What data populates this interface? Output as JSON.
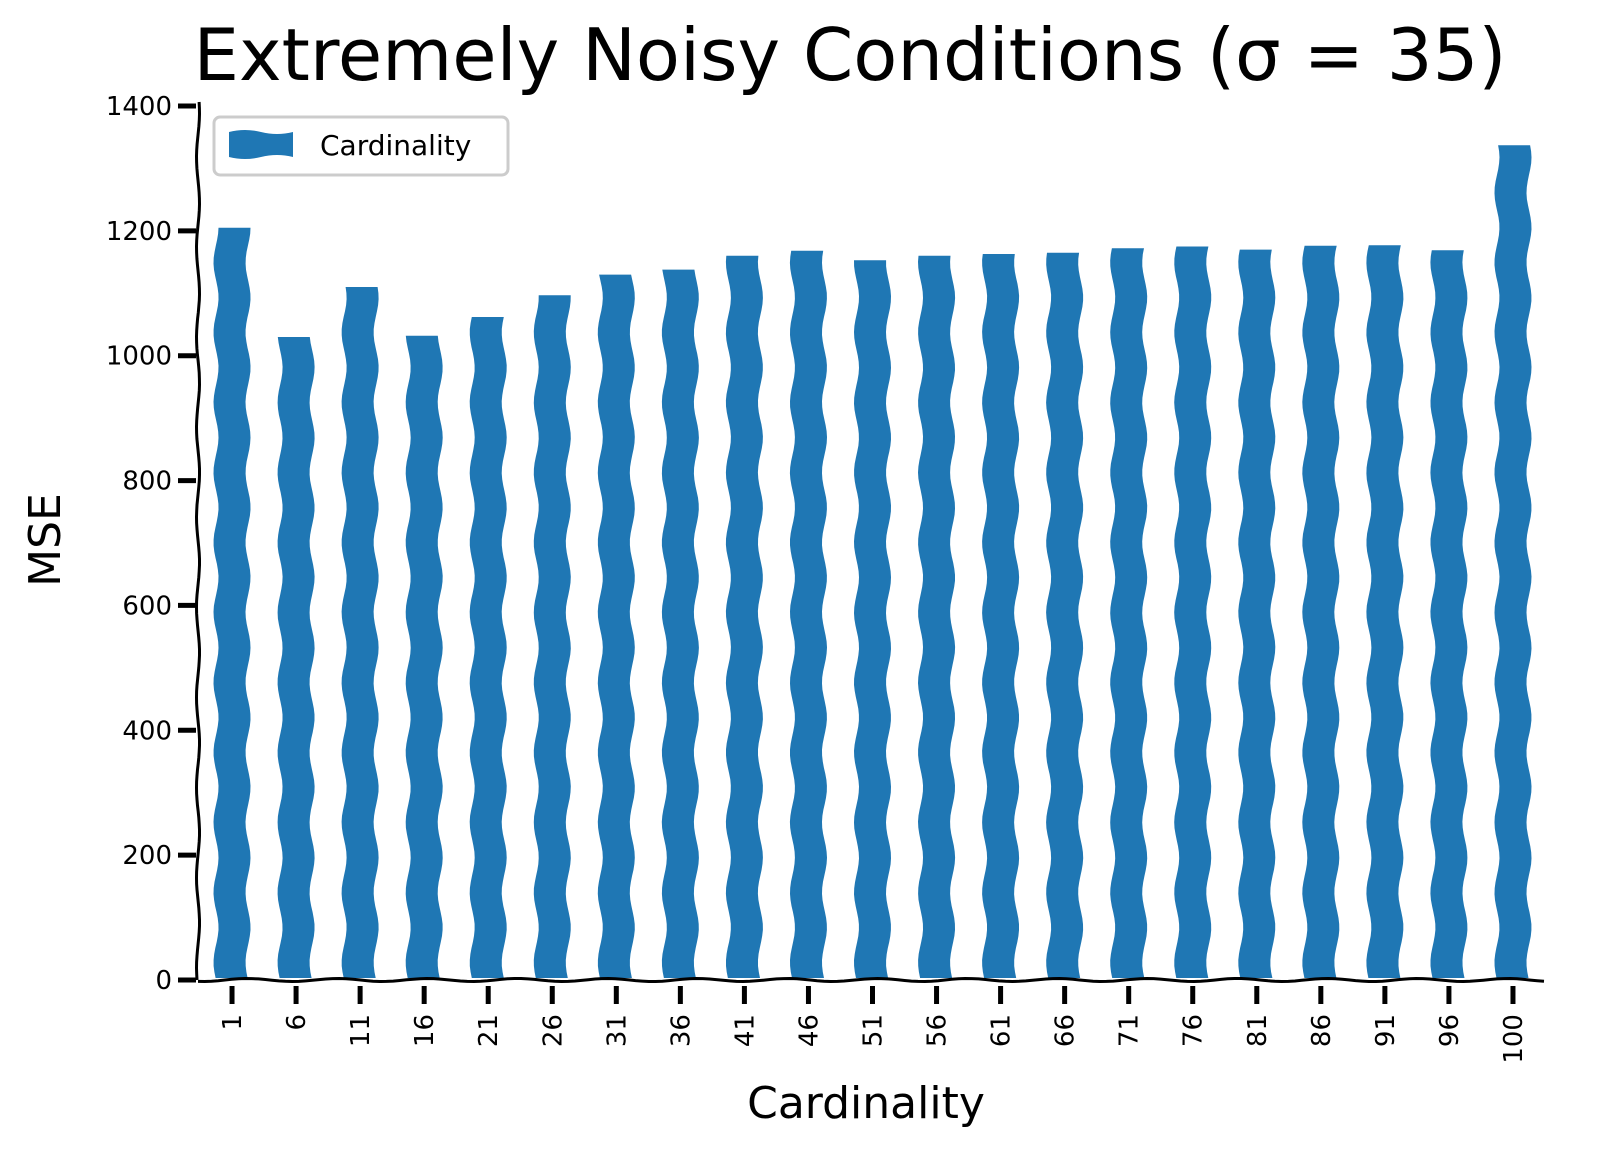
{
  "chart_data": {
    "type": "bar",
    "title": "Extremely Noisy Conditions (σ = 35)",
    "xlabel": "Cardinality",
    "ylabel": "MSE",
    "categories": [
      "1",
      "6",
      "11",
      "16",
      "21",
      "26",
      "31",
      "36",
      "41",
      "46",
      "51",
      "56",
      "61",
      "66",
      "71",
      "76",
      "81",
      "86",
      "91",
      "96",
      "100"
    ],
    "series": [
      {
        "name": "Cardinality",
        "color": "#1f77b4",
        "values": [
          1205,
          1030,
          1110,
          1032,
          1062,
          1097,
          1130,
          1138,
          1160,
          1168,
          1153,
          1160,
          1163,
          1165,
          1172,
          1175,
          1170,
          1176,
          1177,
          1169,
          1337
        ]
      }
    ],
    "ylim": [
      0,
      1400
    ],
    "yticks": [
      "0",
      "200",
      "400",
      "600",
      "800",
      "1000",
      "1200",
      "1400"
    ],
    "grid": false,
    "legend_position": "top-left"
  }
}
